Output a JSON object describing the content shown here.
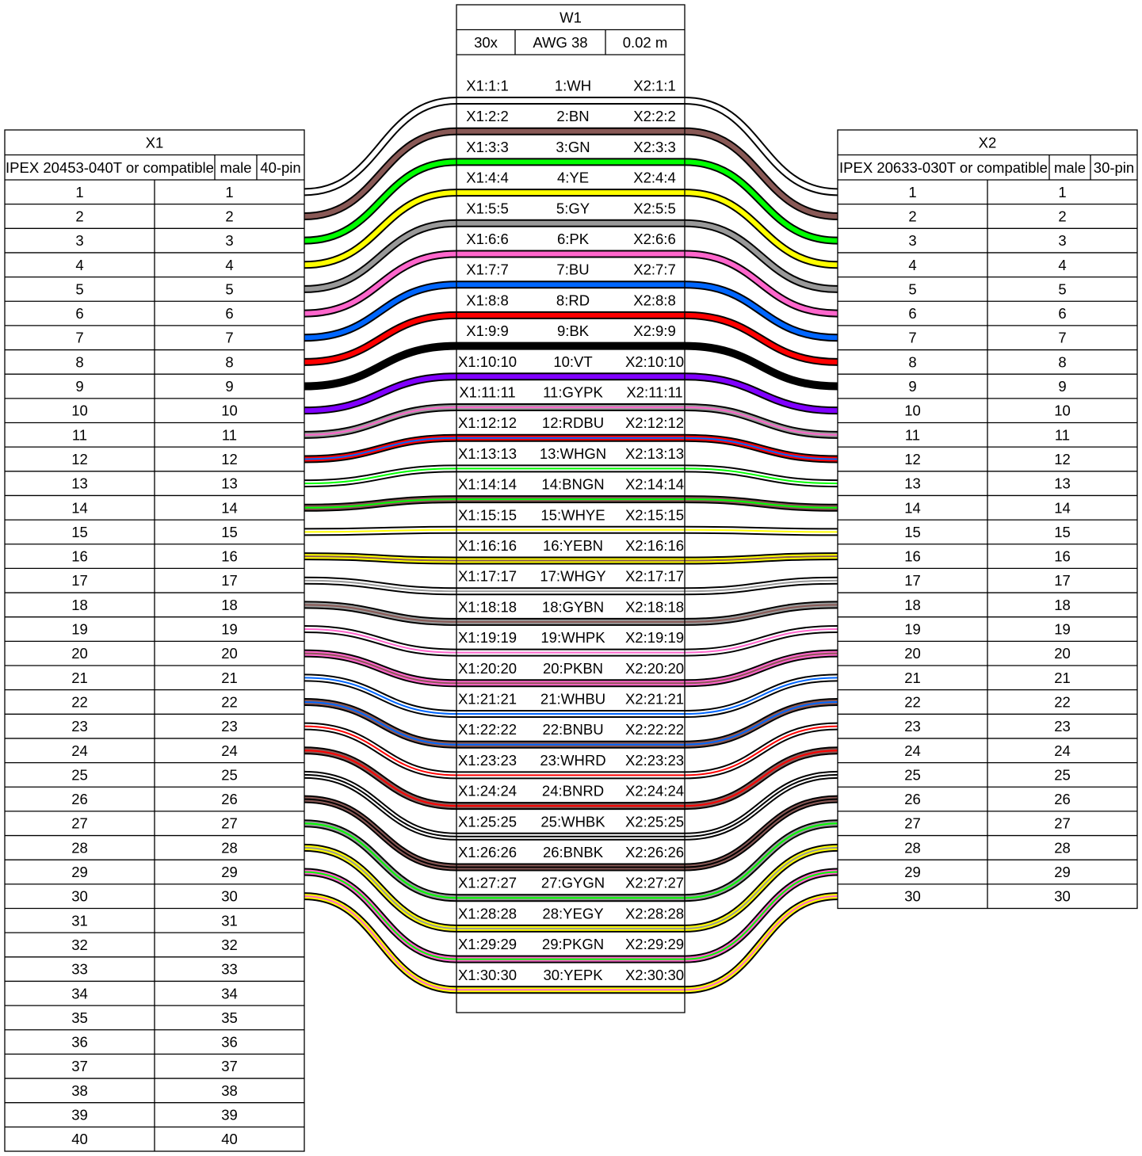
{
  "connectors": [
    {
      "name": "X1",
      "part": "IPEX 20453-040T or compatible",
      "gender": "male",
      "pins_label": "40-pin",
      "pin_count": 40
    },
    {
      "name": "X2",
      "part": "IPEX 20633-030T or compatible",
      "gender": "male",
      "pins_label": "30-pin",
      "pin_count": 30
    }
  ],
  "cable": {
    "name": "W1",
    "count": "30x",
    "gauge": "AWG 38",
    "length": "0.02 m",
    "wires": [
      {
        "id": 1,
        "left": "X1:1:1",
        "label": "1:WH",
        "right": "X2:1:1",
        "colors": [
          "#ffffff"
        ]
      },
      {
        "id": 2,
        "left": "X1:2:2",
        "label": "2:BN",
        "right": "X2:2:2",
        "colors": [
          "#895956"
        ]
      },
      {
        "id": 3,
        "left": "X1:3:3",
        "label": "3:GN",
        "right": "X2:3:3",
        "colors": [
          "#00ff00"
        ]
      },
      {
        "id": 4,
        "left": "X1:4:4",
        "label": "4:YE",
        "right": "X2:4:4",
        "colors": [
          "#ffff00"
        ]
      },
      {
        "id": 5,
        "left": "X1:5:5",
        "label": "5:GY",
        "right": "X2:5:5",
        "colors": [
          "#999999"
        ]
      },
      {
        "id": 6,
        "left": "X1:6:6",
        "label": "6:PK",
        "right": "X2:6:6",
        "colors": [
          "#ff66cc"
        ]
      },
      {
        "id": 7,
        "left": "X1:7:7",
        "label": "7:BU",
        "right": "X2:7:7",
        "colors": [
          "#0066ff"
        ]
      },
      {
        "id": 8,
        "left": "X1:8:8",
        "label": "8:RD",
        "right": "X2:8:8",
        "colors": [
          "#ff0000"
        ]
      },
      {
        "id": 9,
        "left": "X1:9:9",
        "label": "9:BK",
        "right": "X2:9:9",
        "colors": [
          "#000000"
        ]
      },
      {
        "id": 10,
        "left": "X1:10:10",
        "label": "10:VT",
        "right": "X2:10:10",
        "colors": [
          "#8000ff"
        ]
      },
      {
        "id": 11,
        "left": "X1:11:11",
        "label": "11:GYPK",
        "right": "X2:11:11",
        "colors": [
          "#999999",
          "#ff66cc"
        ]
      },
      {
        "id": 12,
        "left": "X1:12:12",
        "label": "12:RDBU",
        "right": "X2:12:12",
        "colors": [
          "#ff0000",
          "#0066ff"
        ]
      },
      {
        "id": 13,
        "left": "X1:13:13",
        "label": "13:WHGN",
        "right": "X2:13:13",
        "colors": [
          "#ffffff",
          "#00ff00"
        ]
      },
      {
        "id": 14,
        "left": "X1:14:14",
        "label": "14:BNGN",
        "right": "X2:14:14",
        "colors": [
          "#895956",
          "#00ff00"
        ]
      },
      {
        "id": 15,
        "left": "X1:15:15",
        "label": "15:WHYE",
        "right": "X2:15:15",
        "colors": [
          "#ffffff",
          "#ffff00"
        ]
      },
      {
        "id": 16,
        "left": "X1:16:16",
        "label": "16:YEBN",
        "right": "X2:16:16",
        "colors": [
          "#ffff00",
          "#895956"
        ]
      },
      {
        "id": 17,
        "left": "X1:17:17",
        "label": "17:WHGY",
        "right": "X2:17:17",
        "colors": [
          "#ffffff",
          "#999999"
        ]
      },
      {
        "id": 18,
        "left": "X1:18:18",
        "label": "18:GYBN",
        "right": "X2:18:18",
        "colors": [
          "#999999",
          "#895956"
        ]
      },
      {
        "id": 19,
        "left": "X1:19:19",
        "label": "19:WHPK",
        "right": "X2:19:19",
        "colors": [
          "#ffffff",
          "#ff66cc"
        ]
      },
      {
        "id": 20,
        "left": "X1:20:20",
        "label": "20:PKBN",
        "right": "X2:20:20",
        "colors": [
          "#ff66cc",
          "#895956"
        ]
      },
      {
        "id": 21,
        "left": "X1:21:21",
        "label": "21:WHBU",
        "right": "X2:21:21",
        "colors": [
          "#ffffff",
          "#0066ff"
        ]
      },
      {
        "id": 22,
        "left": "X1:22:22",
        "label": "22:BNBU",
        "right": "X2:22:22",
        "colors": [
          "#895956",
          "#0066ff"
        ]
      },
      {
        "id": 23,
        "left": "X1:23:23",
        "label": "23:WHRD",
        "right": "X2:23:23",
        "colors": [
          "#ffffff",
          "#ff0000"
        ]
      },
      {
        "id": 24,
        "left": "X1:24:24",
        "label": "24:BNRD",
        "right": "X2:24:24",
        "colors": [
          "#895956",
          "#ff0000"
        ]
      },
      {
        "id": 25,
        "left": "X1:25:25",
        "label": "25:WHBK",
        "right": "X2:25:25",
        "colors": [
          "#ffffff",
          "#000000"
        ]
      },
      {
        "id": 26,
        "left": "X1:26:26",
        "label": "26:BNBK",
        "right": "X2:26:26",
        "colors": [
          "#895956",
          "#000000"
        ]
      },
      {
        "id": 27,
        "left": "X1:27:27",
        "label": "27:GYGN",
        "right": "X2:27:27",
        "colors": [
          "#999999",
          "#00ff00"
        ]
      },
      {
        "id": 28,
        "left": "X1:28:28",
        "label": "28:YEGY",
        "right": "X2:28:28",
        "colors": [
          "#ffff00",
          "#999999"
        ]
      },
      {
        "id": 29,
        "left": "X1:29:29",
        "label": "29:PKGN",
        "right": "X2:29:29",
        "colors": [
          "#ff66cc",
          "#00ff00"
        ]
      },
      {
        "id": 30,
        "left": "X1:30:30",
        "label": "30:YEPK",
        "right": "X2:30:30",
        "colors": [
          "#ffff00",
          "#ff66cc"
        ]
      }
    ]
  }
}
